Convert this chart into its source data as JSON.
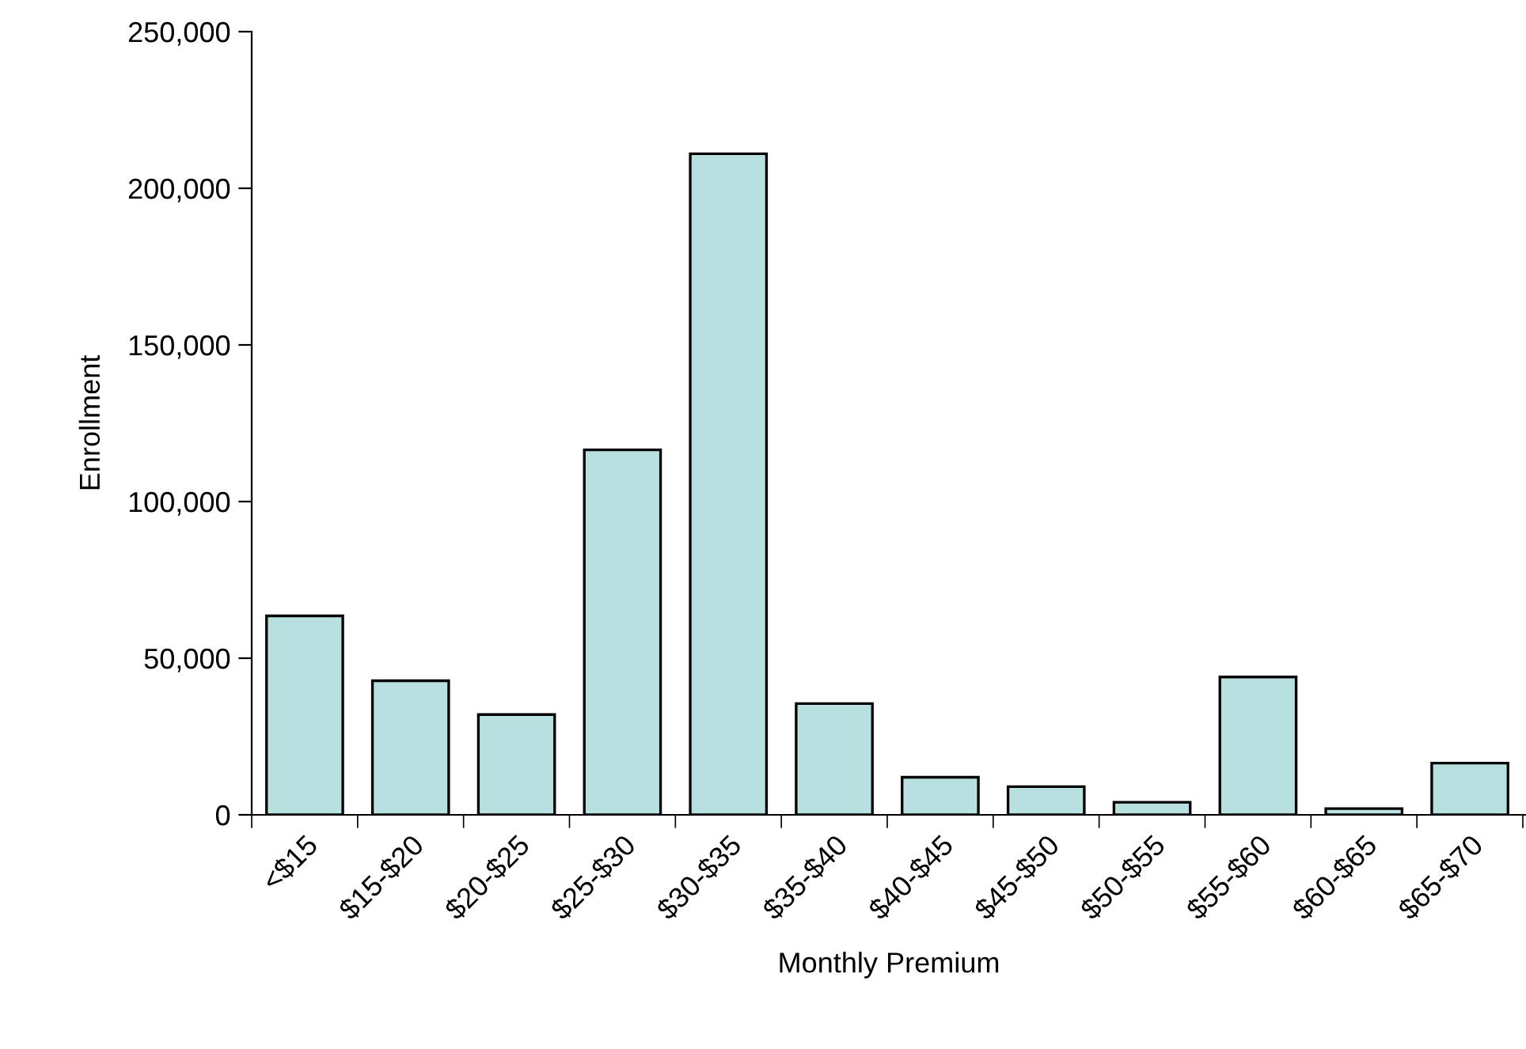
{
  "chart_data": {
    "type": "bar",
    "xlabel": "Monthly Premium",
    "ylabel": "Enrollment",
    "categories": [
      "<$15",
      "$15-$20",
      "$20-$25",
      "$25-$30",
      "$30-$35",
      "$35-$40",
      "$40-$45",
      "$45-$50",
      "$50-$55",
      "$55-$60",
      "$60-$65",
      "$65-$70"
    ],
    "values": [
      63500,
      42800,
      32000,
      116500,
      211000,
      35500,
      12000,
      9000,
      4000,
      44000,
      2000,
      16500
    ],
    "color": "#b9e0e0",
    "ylim": [
      0,
      250000
    ],
    "yticks": [
      {
        "value": 0,
        "label": "0"
      },
      {
        "value": 50000,
        "label": "50,000"
      },
      {
        "value": 100000,
        "label": "100,000"
      },
      {
        "value": 150000,
        "label": "150,000"
      },
      {
        "value": 200000,
        "label": "200,000"
      },
      {
        "value": 250000,
        "label": "250,000"
      }
    ],
    "grid": false
  }
}
